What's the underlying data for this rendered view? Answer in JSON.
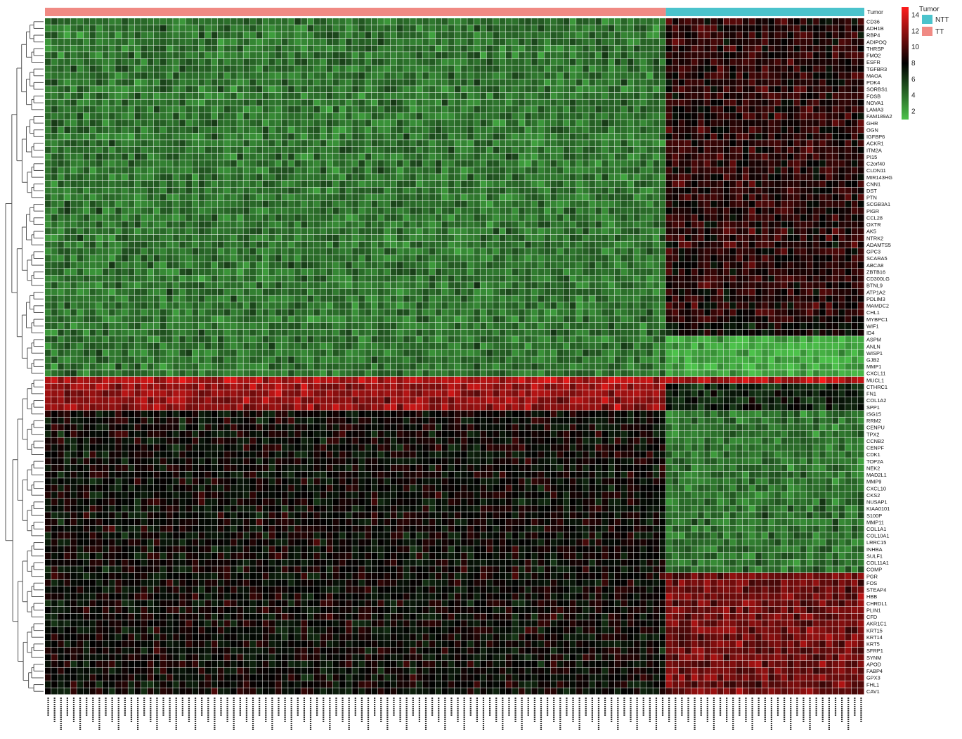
{
  "colors": {
    "low": "#4cc24a",
    "mid": "#000000",
    "high": "#ff1c1c",
    "grid": "#ffffff",
    "dendrogram": "#555555",
    "tt": "#f08a84",
    "ntt": "#4bc3cc"
  },
  "chart_data": {
    "type": "heatmap",
    "title": "",
    "xlabel": "",
    "ylabel": "",
    "grid": true,
    "legend_placement": "top-right",
    "annotation": {
      "title": "Tumor",
      "label": "Tumor",
      "groups": [
        {
          "name": "NTT",
          "count": 31,
          "color": "#4bc3cc"
        },
        {
          "name": "TT",
          "count": 97,
          "color": "#f08a84"
        }
      ],
      "order": [
        "TT",
        "NTT"
      ]
    },
    "color_scale": {
      "min": 1,
      "max": 15,
      "ticks": [
        "14",
        "12",
        "10",
        "8",
        "6",
        "4",
        "2"
      ]
    },
    "n_columns": 128,
    "column_labels_note": "sample IDs printed vertically, not legible",
    "rows": [
      "CD36",
      "ADH1B",
      "RBP4",
      "ADIPOQ",
      "THRSP",
      "FMO2",
      "ESFR",
      "TGFBR3",
      "MAOA",
      "PDK4",
      "SORBS1",
      "FOSB",
      "NOVA1",
      "LAMA3",
      "FAM189A2",
      "GHR",
      "OGN",
      "IGFBP6",
      "ACKR1",
      "ITM2A",
      "PI15",
      "C2orf40",
      "CLDN11",
      "MIR143HG",
      "CNN1",
      "DST",
      "PTN",
      "SCGB3A1",
      "PIGR",
      "CCL28",
      "OXTR",
      "AK5",
      "NTRK2",
      "ADAMTS5",
      "GPC3",
      "SCARA5",
      "ABCA8",
      "ZBTB16",
      "CD300LG",
      "BTNL9",
      "ATP1A2",
      "PDLIM3",
      "MAMDC2",
      "CHL1",
      "MYBPC1",
      "WIF1",
      "ID4",
      "ASPM",
      "ANLN",
      "WISP1",
      "GJB2",
      "MMP1",
      "CXCL11",
      "MUCL1",
      "CTHRC1",
      "FN1",
      "COL1A2",
      "SPP1",
      "ISG15",
      "RRM2",
      "CENPU",
      "TPX2",
      "CCNB2",
      "CENPF",
      "CDK1",
      "TOP2A",
      "NEK2",
      "MAD2L1",
      "MMP9",
      "CXCL10",
      "CKS2",
      "NUSAP1",
      "KIAA0101",
      "S100P",
      "MMP11",
      "COL1A1",
      "COL10A1",
      "LRRC15",
      "INHBA",
      "SULF1",
      "COL11A1",
      "COMP",
      "PGR",
      "FOS",
      "STEAP4",
      "HBB",
      "CHRDL1",
      "PLIN1",
      "CFD",
      "AKR1C1",
      "KRT15",
      "KRT14",
      "KRT5",
      "SFRP1",
      "SYNM",
      "APOD",
      "FABP4",
      "GPX3",
      "FHL1",
      "CAV1"
    ],
    "row_pattern": {
      "note": "mean expression (scale units) by row block; individual cell values are not legible",
      "blocks": [
        {
          "rows": "CD36-MYBPC1",
          "TT": 4,
          "NTT": 9
        },
        {
          "rows": "WIF1-ID4",
          "TT": 4,
          "NTT": 8
        },
        {
          "rows": "ASPM-CXCL11",
          "TT": 4,
          "NTT": 2
        },
        {
          "rows": "MUCL1",
          "TT": 13,
          "NTT": 13
        },
        {
          "rows": "CTHRC1-SPP1",
          "TT": 12,
          "NTT": 7
        },
        {
          "rows": "ISG15-COMP",
          "TT": 8,
          "NTT": 4
        },
        {
          "rows": "PGR-CAV1",
          "TT": 8,
          "NTT": 11
        }
      ]
    }
  }
}
